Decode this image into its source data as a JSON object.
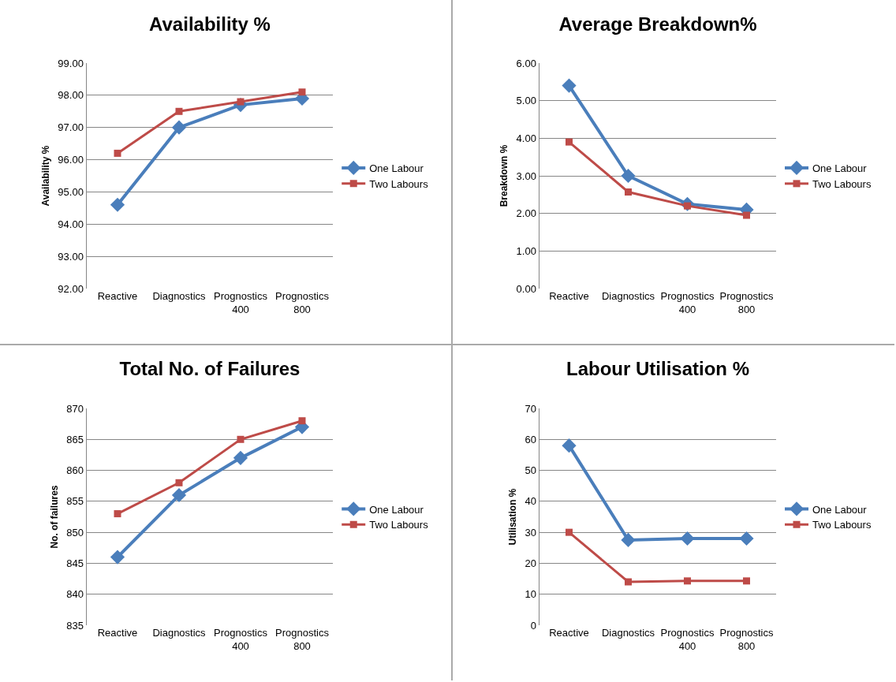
{
  "chart_data": [
    {
      "type": "line",
      "title": "Availability %",
      "ylabel": "Availability %",
      "categories": [
        "Reactive",
        "Diagnostics",
        "Prognostics\n400",
        "Prognostics\n800"
      ],
      "series": [
        {
          "name": "One Labour",
          "color": "#4a7ebb",
          "marker": "diamond",
          "values": [
            94.6,
            97.0,
            97.7,
            97.9
          ]
        },
        {
          "name": "Two Labours",
          "color": "#be4b48",
          "marker": "square",
          "values": [
            96.2,
            97.5,
            97.8,
            98.1
          ]
        }
      ],
      "ylim": [
        92,
        99
      ],
      "yticks": [
        {
          "value": 92,
          "label": "92.00"
        },
        {
          "value": 93,
          "label": "93.00"
        },
        {
          "value": 94,
          "label": "94.00"
        },
        {
          "value": 95,
          "label": "95.00"
        },
        {
          "value": 96,
          "label": "96.00"
        },
        {
          "value": 97,
          "label": "97.00"
        },
        {
          "value": 98,
          "label": "98.00"
        },
        {
          "value": 99,
          "label": "99.00"
        }
      ],
      "grid": "y",
      "legend": "right"
    },
    {
      "type": "line",
      "title": "Average Breakdown%",
      "ylabel": "Breakdown %",
      "categories": [
        "Reactive",
        "Diagnostics",
        "Prognostics\n400",
        "Prognostics\n800"
      ],
      "series": [
        {
          "name": "One Labour",
          "color": "#4a7ebb",
          "marker": "diamond",
          "values": [
            5.4,
            3.0,
            2.25,
            2.1
          ]
        },
        {
          "name": "Two Labours",
          "color": "#be4b48",
          "marker": "square",
          "values": [
            3.9,
            2.57,
            2.2,
            1.95
          ]
        }
      ],
      "ylim": [
        0,
        6
      ],
      "yticks": [
        {
          "value": 0,
          "label": "0.00"
        },
        {
          "value": 1,
          "label": "1.00"
        },
        {
          "value": 2,
          "label": "2.00"
        },
        {
          "value": 3,
          "label": "3.00"
        },
        {
          "value": 4,
          "label": "4.00"
        },
        {
          "value": 5,
          "label": "5.00"
        },
        {
          "value": 6,
          "label": "6.00"
        }
      ],
      "grid": "y",
      "legend": "right"
    },
    {
      "type": "line",
      "title": "Total No. of Failures",
      "ylabel": "No. of failures",
      "categories": [
        "Reactive",
        "Diagnostics",
        "Prognostics\n400",
        "Prognostics\n800"
      ],
      "series": [
        {
          "name": "One Labour",
          "color": "#4a7ebb",
          "marker": "diamond",
          "values": [
            846,
            856,
            862,
            867
          ]
        },
        {
          "name": "Two Labours",
          "color": "#be4b48",
          "marker": "square",
          "values": [
            853,
            858,
            865,
            868
          ]
        }
      ],
      "ylim": [
        835,
        870
      ],
      "yticks": [
        835,
        840,
        845,
        850,
        855,
        860,
        865,
        870
      ],
      "grid": "y",
      "legend": "right"
    },
    {
      "type": "line",
      "title": "Labour Utilisation %",
      "ylabel": "Utilisation %",
      "categories": [
        "Reactive",
        "Diagnostics",
        "Prognostics\n400",
        "Prognostics\n800"
      ],
      "series": [
        {
          "name": "One Labour",
          "color": "#4a7ebb",
          "marker": "diamond",
          "values": [
            58,
            27.5,
            28,
            28
          ]
        },
        {
          "name": "Two Labours",
          "color": "#be4b48",
          "marker": "square",
          "values": [
            30,
            14,
            14.3,
            14.3
          ]
        }
      ],
      "ylim": [
        0,
        70
      ],
      "yticks": [
        0,
        10,
        20,
        30,
        40,
        50,
        60,
        70
      ],
      "grid": "y",
      "legend": "right"
    }
  ]
}
